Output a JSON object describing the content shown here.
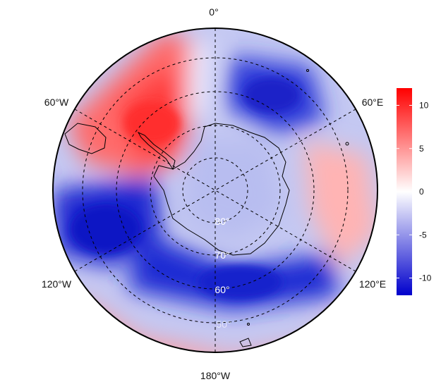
{
  "map": {
    "projection": "south-polar-stereographic",
    "longitude_labels": {
      "top": "0°",
      "left_upper": "60°W",
      "right_upper": "60°E",
      "left_lower": "120°W",
      "right_lower": "120°E",
      "bottom": "180°W"
    },
    "latitude_labels": [
      "80°",
      "70°",
      "60°",
      "50°"
    ]
  },
  "colorbar": {
    "ticks": [
      "10",
      "5",
      "0",
      "-5",
      "-10"
    ],
    "tick_values": [
      10,
      5,
      0,
      -5,
      -10
    ],
    "range": [
      -12,
      12
    ],
    "colors": {
      "min": "#0000cc",
      "mid": "#ffffff",
      "max": "#ff0000"
    }
  },
  "colors": {
    "coastline": "#000000",
    "grid": "#000000",
    "background": "#ffffff"
  }
}
